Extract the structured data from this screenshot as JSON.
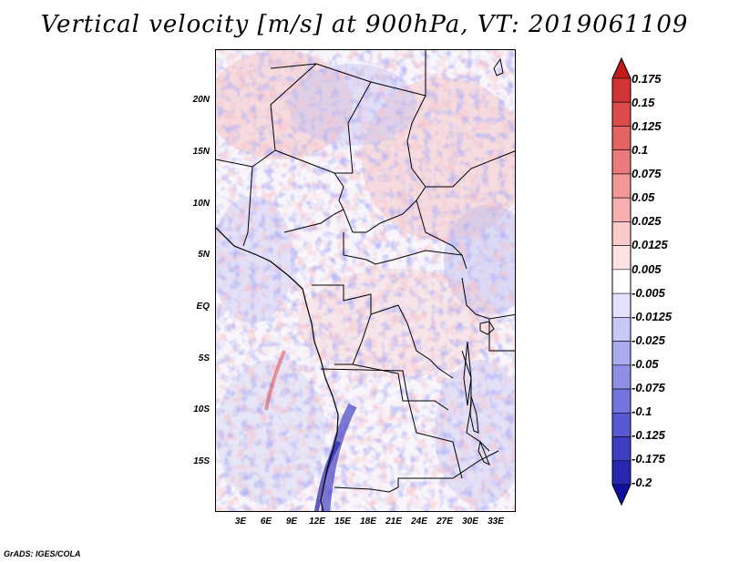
{
  "title": "Vertical velocity [m/s] at 900hPa, VT: 2019061109",
  "map": {
    "variable": "Vertical velocity",
    "units": "m/s",
    "level": "900hPa",
    "valid_time": "2019061109",
    "lat_labels": [
      "20N",
      "15N",
      "10N",
      "5N",
      "EQ",
      "5S",
      "10S",
      "15S"
    ],
    "lon_labels": [
      "3E",
      "6E",
      "9E",
      "12E",
      "15E",
      "18E",
      "21E",
      "24E",
      "27E",
      "30E",
      "33E"
    ]
  },
  "colorbar": {
    "labels": [
      "0.175",
      "0.15",
      "0.125",
      "0.1",
      "0.075",
      "0.05",
      "0.025",
      "0.0125",
      "0.005",
      "-0.005",
      "-0.0125",
      "-0.025",
      "-0.05",
      "-0.075",
      "-0.1",
      "-0.125",
      "-0.175",
      "-0.2"
    ],
    "colors": [
      "#c21a1a",
      "#d03434",
      "#dc4a4a",
      "#e46262",
      "#eb7b7b",
      "#f29696",
      "#f7b0b0",
      "#fbcaca",
      "#fde3e3",
      "#ffffff",
      "#e2e2fb",
      "#c8c8f6",
      "#ababf0",
      "#8f8fe8",
      "#7474de",
      "#5858d2",
      "#3e3ec4",
      "#2727b2",
      "#1010a0"
    ]
  },
  "credit": "GrADS: IGES/COLA"
}
